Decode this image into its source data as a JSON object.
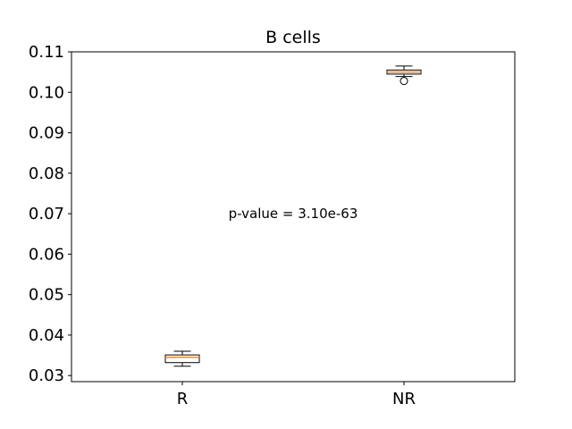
{
  "chart_data": {
    "type": "box",
    "title": "B cells",
    "xlabel": "",
    "ylabel": "",
    "categories": [
      "R",
      "NR"
    ],
    "ylim": [
      0.0285,
      0.11
    ],
    "yticks": [
      "0.03",
      "0.04",
      "0.05",
      "0.06",
      "0.07",
      "0.08",
      "0.09",
      "0.10",
      "0.11"
    ],
    "boxes": [
      {
        "category": "R",
        "whisker_low": 0.0323,
        "q1": 0.0332,
        "median": 0.0345,
        "q3": 0.0351,
        "whisker_high": 0.036,
        "outliers": []
      },
      {
        "category": "NR",
        "whisker_low": 0.1039,
        "q1": 0.1045,
        "median": 0.105,
        "q3": 0.1055,
        "whisker_high": 0.1065,
        "outliers": [
          0.1028
        ]
      }
    ],
    "annotation": {
      "text": "p-value = 3.10e-63",
      "x": 1.5,
      "y": 0.07
    },
    "colors": {
      "box": "#000000",
      "median": "#ff7f0e",
      "box_fill": "#ffffff"
    },
    "grid": false,
    "legend": "none"
  }
}
